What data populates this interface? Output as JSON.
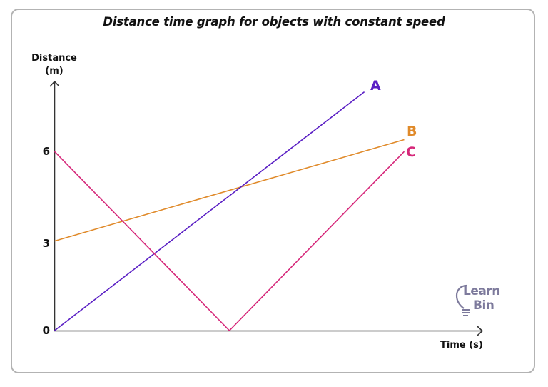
{
  "chart_data": {
    "type": "line",
    "title": "Distance time graph for objects with constant speed",
    "xlabel": "Time (s)",
    "ylabel": "Distance (m)",
    "yticks": [
      0,
      3,
      6
    ],
    "xticks": [],
    "ylim": [
      0,
      9
    ],
    "xlim": [
      0,
      12
    ],
    "grid": false,
    "legend": "inline labels at line ends",
    "series": [
      {
        "name": "A",
        "color": "#5a1fc4",
        "x": [
          0,
          8.86
        ],
        "y": [
          0,
          8.0
        ]
      },
      {
        "name": "B",
        "color": "#e08a2a",
        "x": [
          0,
          10
        ],
        "y": [
          3,
          6.4
        ]
      },
      {
        "name": "C",
        "color": "#d6287a",
        "x": [
          0,
          5,
          10
        ],
        "y": [
          6,
          0,
          6
        ]
      }
    ]
  },
  "labels": {
    "title": "Distance time graph for objects with constant speed",
    "ylabel_line1": "Distance",
    "ylabel_line2": "(m)",
    "xlabel": "Time (s)",
    "tick_0": "0",
    "tick_3": "3",
    "tick_6": "6",
    "series_a": "A",
    "series_b": "B",
    "series_c": "C"
  },
  "watermark": {
    "line1": "Learn",
    "line2": "Bin",
    "color": "#7d7a9c"
  }
}
